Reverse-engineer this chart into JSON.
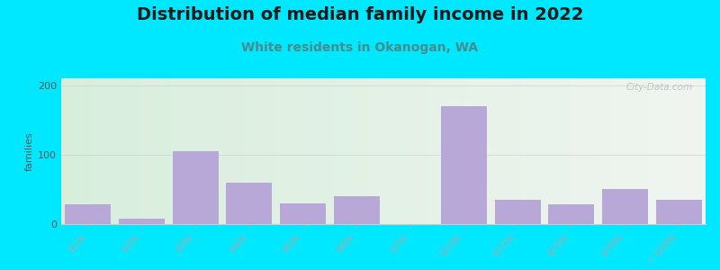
{
  "title": "Distribution of median family income in 2022",
  "subtitle": "White residents in Okanogan, WA",
  "ylabel": "families",
  "background_outer": "#00e8ff",
  "bar_color": "#b8a8d8",
  "plot_bg_color_left": "#d8eedd",
  "plot_bg_color_right": "#f0f5f0",
  "categories": [
    "$10k",
    "$20k",
    "$30k",
    "$40k",
    "$50k",
    "$60k",
    "$75k",
    "$100k",
    "$125k",
    "$150k",
    "$200k",
    "> $200k"
  ],
  "values": [
    28,
    8,
    105,
    60,
    30,
    40,
    0,
    170,
    35,
    28,
    50,
    35
  ],
  "ylim": [
    0,
    210
  ],
  "yticks": [
    0,
    100,
    200
  ],
  "grid_color": "#cccccc",
  "title_fontsize": 14,
  "subtitle_fontsize": 10,
  "ylabel_fontsize": 8,
  "tick_label_fontsize": 7,
  "watermark": "City-Data.com"
}
